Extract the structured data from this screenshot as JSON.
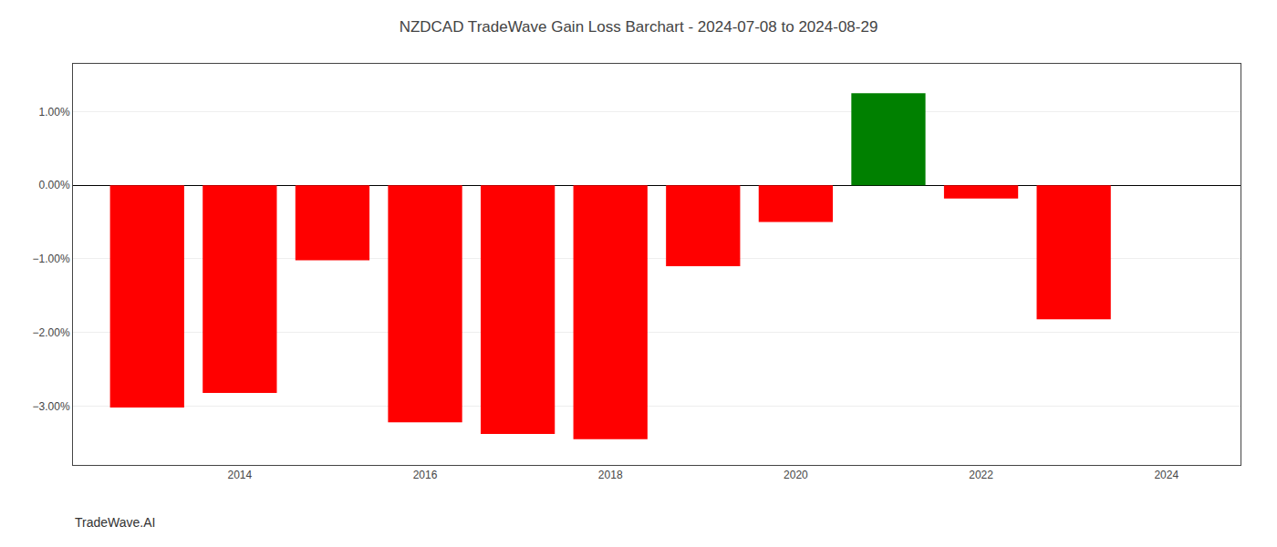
{
  "chart_data": {
    "type": "bar",
    "title": "NZDCAD TradeWave Gain Loss Barchart - 2024-07-08 to 2024-08-29",
    "annotations": [
      "TradeWave.AI"
    ],
    "x": [
      2013,
      2014,
      2015,
      2016,
      2017,
      2018,
      2019,
      2020,
      2021,
      2022,
      2023
    ],
    "values": [
      -3.02,
      -2.82,
      -1.02,
      -3.22,
      -3.38,
      -3.45,
      -1.1,
      -0.5,
      1.25,
      -0.18,
      -1.82
    ],
    "colors": [
      "#ff0000",
      "#ff0000",
      "#ff0000",
      "#ff0000",
      "#ff0000",
      "#ff0000",
      "#ff0000",
      "#ff0000",
      "#008000",
      "#ff0000",
      "#ff0000"
    ],
    "xlim": [
      2012.2,
      2024.8
    ],
    "xticks": [
      2014,
      2016,
      2018,
      2020,
      2022,
      2024
    ],
    "ylim": [
      -3.8,
      1.65
    ],
    "yticks": [
      {
        "value": -3.0,
        "label": "−3.00%"
      },
      {
        "value": -2.0,
        "label": "−2.00%"
      },
      {
        "value": -1.0,
        "label": "−1.00%"
      },
      {
        "value": 0.0,
        "label": "0.00%"
      },
      {
        "value": 1.0,
        "label": "1.00%"
      }
    ],
    "grid": true
  }
}
